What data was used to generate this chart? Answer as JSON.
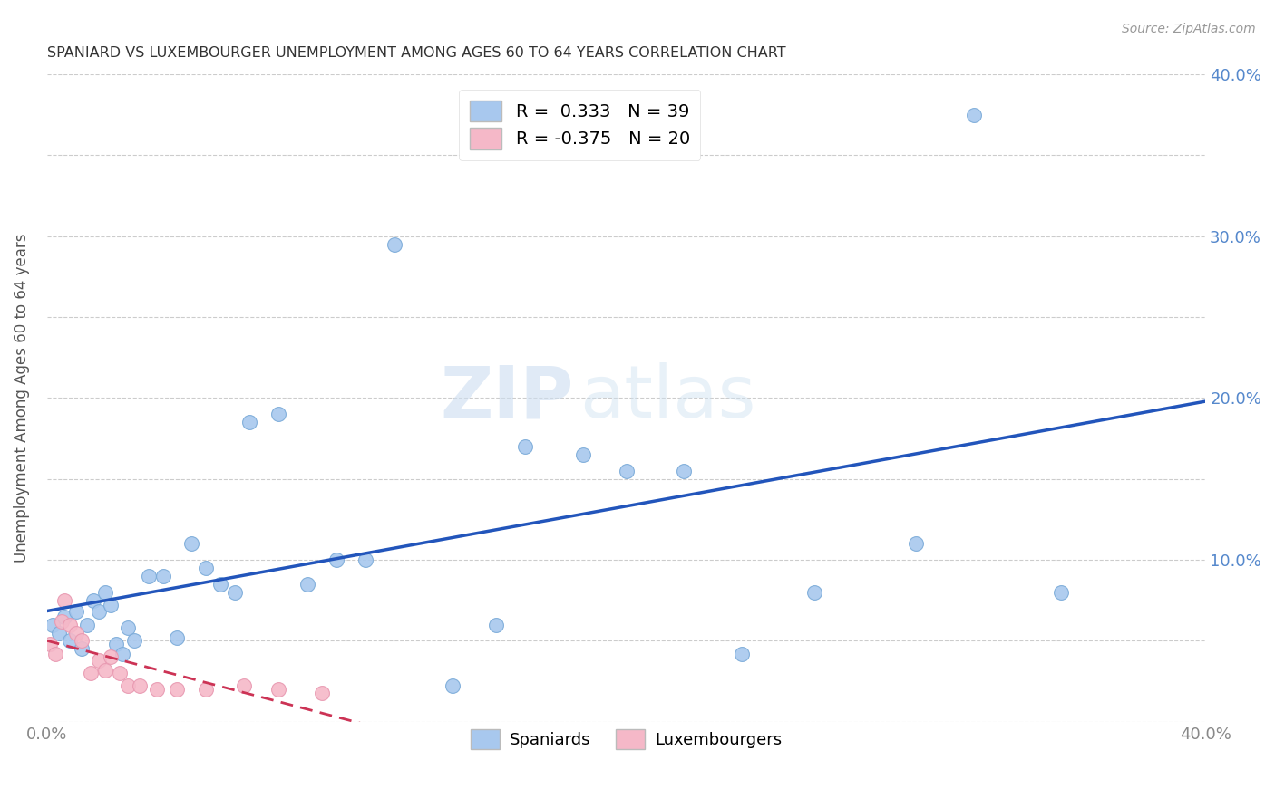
{
  "title": "SPANIARD VS LUXEMBOURGER UNEMPLOYMENT AMONG AGES 60 TO 64 YEARS CORRELATION CHART",
  "source": "Source: ZipAtlas.com",
  "ylabel": "Unemployment Among Ages 60 to 64 years",
  "xlim": [
    0.0,
    0.4
  ],
  "ylim": [
    0.0,
    0.4
  ],
  "spaniard_color": "#a8c8ee",
  "spaniard_edge_color": "#7aaad8",
  "luxembourger_color": "#f5b8c8",
  "luxembourger_edge_color": "#e898b0",
  "spaniard_line_color": "#2255bb",
  "luxembourger_line_color": "#cc3355",
  "right_tick_color": "#5588cc",
  "R_spaniard": "0.333",
  "N_spaniard": "39",
  "R_luxembourger": "-0.375",
  "N_luxembourger": "20",
  "watermark_zip": "ZIP",
  "watermark_atlas": "atlas",
  "background_color": "#ffffff",
  "grid_color": "#cccccc",
  "title_color": "#333333",
  "source_color": "#999999",
  "ylabel_color": "#555555",
  "spaniard_x": [
    0.002,
    0.004,
    0.006,
    0.008,
    0.01,
    0.012,
    0.014,
    0.016,
    0.018,
    0.02,
    0.022,
    0.024,
    0.026,
    0.028,
    0.03,
    0.035,
    0.04,
    0.045,
    0.05,
    0.055,
    0.06,
    0.065,
    0.07,
    0.08,
    0.09,
    0.1,
    0.11,
    0.12,
    0.14,
    0.155,
    0.165,
    0.185,
    0.2,
    0.22,
    0.24,
    0.265,
    0.3,
    0.32,
    0.35
  ],
  "spaniard_y": [
    0.06,
    0.055,
    0.065,
    0.05,
    0.068,
    0.045,
    0.06,
    0.075,
    0.068,
    0.08,
    0.072,
    0.048,
    0.042,
    0.058,
    0.05,
    0.09,
    0.09,
    0.052,
    0.11,
    0.095,
    0.085,
    0.08,
    0.185,
    0.19,
    0.085,
    0.1,
    0.1,
    0.295,
    0.022,
    0.06,
    0.17,
    0.165,
    0.155,
    0.155,
    0.042,
    0.08,
    0.11,
    0.375,
    0.08
  ],
  "luxembourger_x": [
    0.001,
    0.003,
    0.005,
    0.006,
    0.008,
    0.01,
    0.012,
    0.015,
    0.018,
    0.02,
    0.022,
    0.025,
    0.028,
    0.032,
    0.038,
    0.045,
    0.055,
    0.068,
    0.08,
    0.095
  ],
  "luxembourger_y": [
    0.048,
    0.042,
    0.062,
    0.075,
    0.06,
    0.055,
    0.05,
    0.03,
    0.038,
    0.032,
    0.04,
    0.03,
    0.022,
    0.022,
    0.02,
    0.02,
    0.02,
    0.022,
    0.02,
    0.018
  ]
}
